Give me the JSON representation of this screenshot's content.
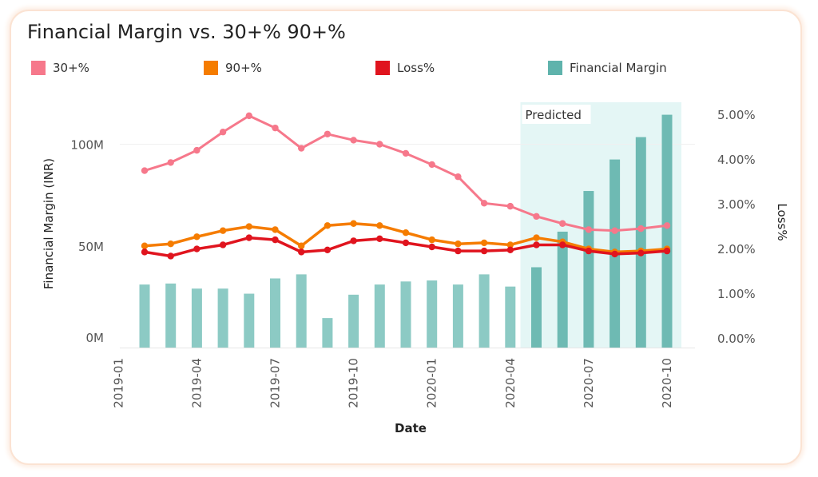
{
  "colors": {
    "pct30": "#f6788b",
    "pct90": "#f57c00",
    "loss": "#e0141e",
    "margin": "#8ccac4",
    "margin_predicted": "#6ebab3",
    "predicted_band": "#e4f6f5"
  },
  "legend": [
    {
      "label": "30+%",
      "color": "#f6788b"
    },
    {
      "label": "90+%",
      "color": "#f57c00"
    },
    {
      "label": "Loss%",
      "color": "#e0141e"
    },
    {
      "label": "Financial Margin",
      "color": "#5fb3ac"
    }
  ],
  "chart_data": {
    "type": "bar+line",
    "title": "Financial Margin vs. 30+% 90+%",
    "xlabel": "Date",
    "ylabel_left": "Financial Margin (INR)",
    "ylabel_right": "Loss%",
    "predicted_label": "Predicted",
    "predicted_start_index": 15,
    "x_ticks": [
      "2019-01",
      "2019-04",
      "2019-07",
      "2019-10",
      "2020-01",
      "2020-04",
      "2020-07",
      "2020-10"
    ],
    "y_left_ticks": [
      "0M",
      "50M",
      "100M"
    ],
    "y_left_tick_values": [
      0,
      50,
      100
    ],
    "y_right_ticks": [
      "0.00%",
      "1.00%",
      "2.00%",
      "3.00%",
      "4.00%",
      "5.00%"
    ],
    "y_right_tick_values": [
      0,
      1,
      2,
      3,
      4,
      5
    ],
    "categories": [
      "2019-02",
      "2019-03",
      "2019-04",
      "2019-05",
      "2019-06",
      "2019-07",
      "2019-08",
      "2019-09",
      "2019-10",
      "2019-11",
      "2019-12",
      "2020-01",
      "2020-02",
      "2020-03",
      "2020-04",
      "2020-05",
      "2020-06",
      "2020-07",
      "2020-08",
      "2020-09",
      "2020-10"
    ],
    "financial_margin_M": [
      31,
      31.5,
      29,
      29,
      26.5,
      34,
      36,
      14.5,
      26,
      31,
      32.5,
      33,
      31,
      36,
      30,
      39.5,
      57,
      77,
      92.5,
      103.5,
      114.5
    ],
    "pct30_M": [
      87,
      91,
      97,
      106,
      114,
      108,
      98,
      105,
      102,
      100,
      95.5,
      90,
      84,
      71,
      69.5,
      64.5,
      61,
      58,
      57.5,
      58.5,
      60
    ],
    "pct90_M": [
      50,
      51,
      54.5,
      57.5,
      59.5,
      58,
      50,
      60,
      61,
      60,
      56.5,
      53,
      51,
      51.5,
      50.5,
      54,
      52,
      48.5,
      47,
      47.5,
      48.5
    ],
    "loss_M": [
      47,
      45,
      48.5,
      50.5,
      54,
      53,
      47,
      48,
      52.5,
      53.5,
      51.5,
      49.5,
      47.5,
      47.5,
      48,
      50.5,
      50.5,
      47.5,
      46,
      46.5,
      47.5
    ]
  }
}
